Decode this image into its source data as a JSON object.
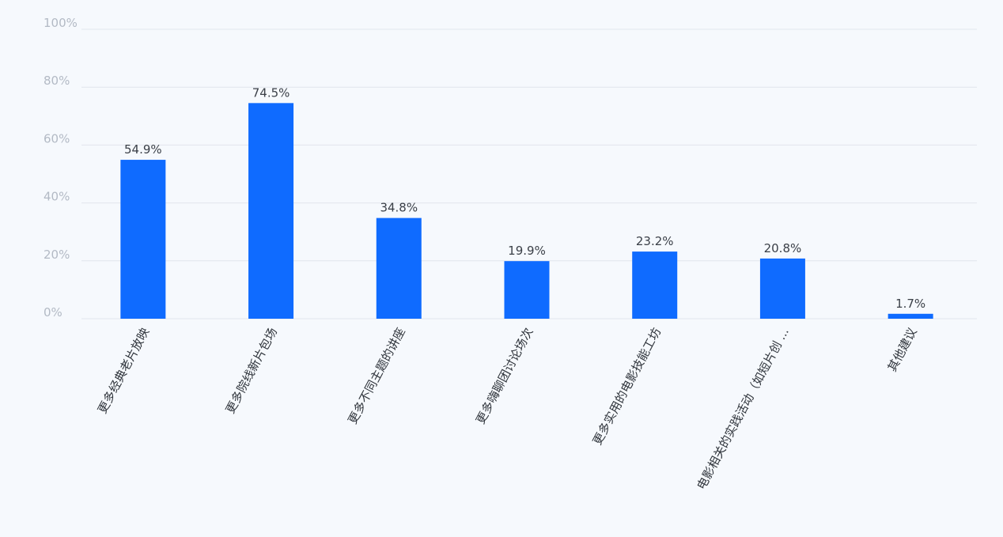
{
  "chart_data": {
    "type": "bar",
    "categories": [
      "更多经典老片放映",
      "更多院线新片包场",
      "更多不同主题的讲座",
      "更多嗨聊团讨论场次",
      "更多实用的电影技能工坊",
      "电影相关的实践活动（如短片创 ...",
      "其他建议"
    ],
    "values": [
      54.9,
      74.5,
      34.8,
      19.9,
      23.2,
      20.8,
      1.7
    ],
    "value_labels": [
      "54.9%",
      "74.5%",
      "34.8%",
      "19.9%",
      "23.2%",
      "20.8%",
      "1.7%"
    ],
    "ylim": [
      0,
      100
    ],
    "yticks": [
      0,
      20,
      40,
      60,
      80,
      100
    ],
    "ytick_labels": [
      "0%",
      "20%",
      "40%",
      "60%",
      "80%",
      "100%"
    ],
    "grid": true,
    "bar_color": "#0f6bff",
    "grid_color": "#e1e6ed",
    "title": "",
    "xlabel": "",
    "ylabel": ""
  }
}
